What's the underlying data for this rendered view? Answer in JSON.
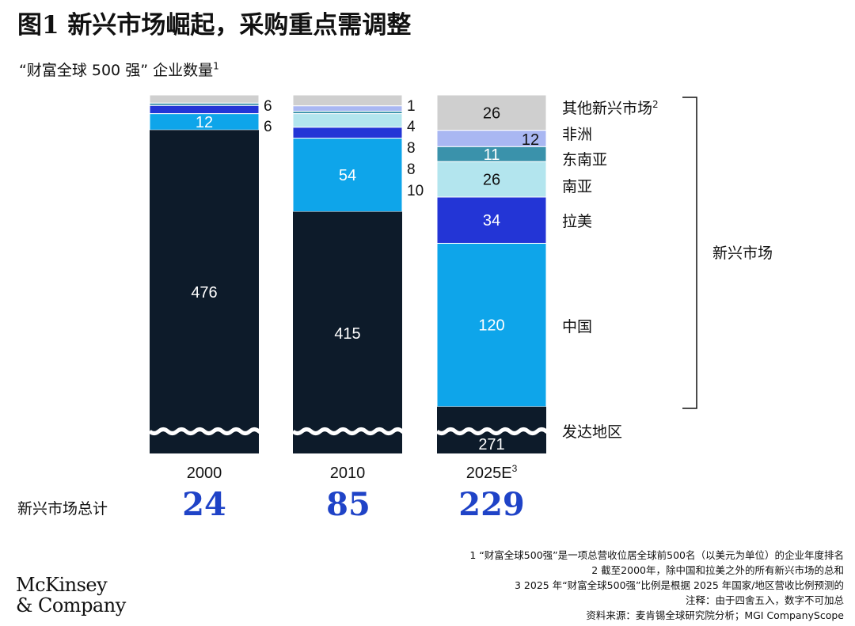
{
  "title": "图1 新兴市场崛起，采购重点需调整",
  "subtitle": "“财富全球 500 强” 企业数量",
  "subtitle_note": "1",
  "chart_data": {
    "type": "bar",
    "stacked": true,
    "categories": [
      "2000",
      "2010",
      "2025E"
    ],
    "category_notes": [
      "",
      "",
      "3"
    ],
    "series": [
      {
        "name": "发达地区",
        "values": [
          476,
          415,
          271
        ],
        "color": "#0d1b2a"
      },
      {
        "name": "中国",
        "values": [
          12,
          54,
          120
        ],
        "color": "#0ea5ea"
      },
      {
        "name": "拉美",
        "values": [
          6,
          8,
          34
        ],
        "color": "#2335d6"
      },
      {
        "name": "南亚",
        "values": [
          0,
          10,
          26
        ],
        "color": "#b3e5ee"
      },
      {
        "name": "东南亚",
        "values": [
          1,
          1,
          11
        ],
        "color": "#3a92ab"
      },
      {
        "name": "非洲",
        "values": [
          0,
          4,
          12
        ],
        "color": "#a9b7f2"
      },
      {
        "name": "其他新兴市场",
        "values": [
          6,
          8,
          26
        ],
        "color": "#cfcfcf"
      }
    ],
    "series_notes": {
      "其他新兴市场": "2"
    },
    "value_labels": {
      "2000": [
        "476",
        "12",
        "6",
        "6"
      ],
      "2010": [
        "415",
        "54",
        "8",
        "10",
        "1",
        "4",
        "8"
      ],
      "2025E": [
        "271",
        "120",
        "34",
        "26",
        "11",
        "12",
        "26"
      ]
    },
    "bracket_label": "新兴市场",
    "axis_break": true
  },
  "totals": {
    "label": "新兴市场总计",
    "values": [
      "24",
      "85",
      "229"
    ]
  },
  "notes": [
    "1 “财富全球500强”是一项总营收位居全球前500名（以美元为单位）的企业年度排名",
    "2 截至2000年，除中国和拉美之外的所有新兴市场的总和",
    "3 2025 年“财富全球500强”比例是根据 2025 年国家/地区营收比例预测的",
    "注释：由于四舍五入，数字不可加总",
    "资料来源：麦肯锡全球研究院分析；MGI CompanyScope"
  ],
  "logo": {
    "line1": "McKinsey",
    "line2": "& Company"
  }
}
